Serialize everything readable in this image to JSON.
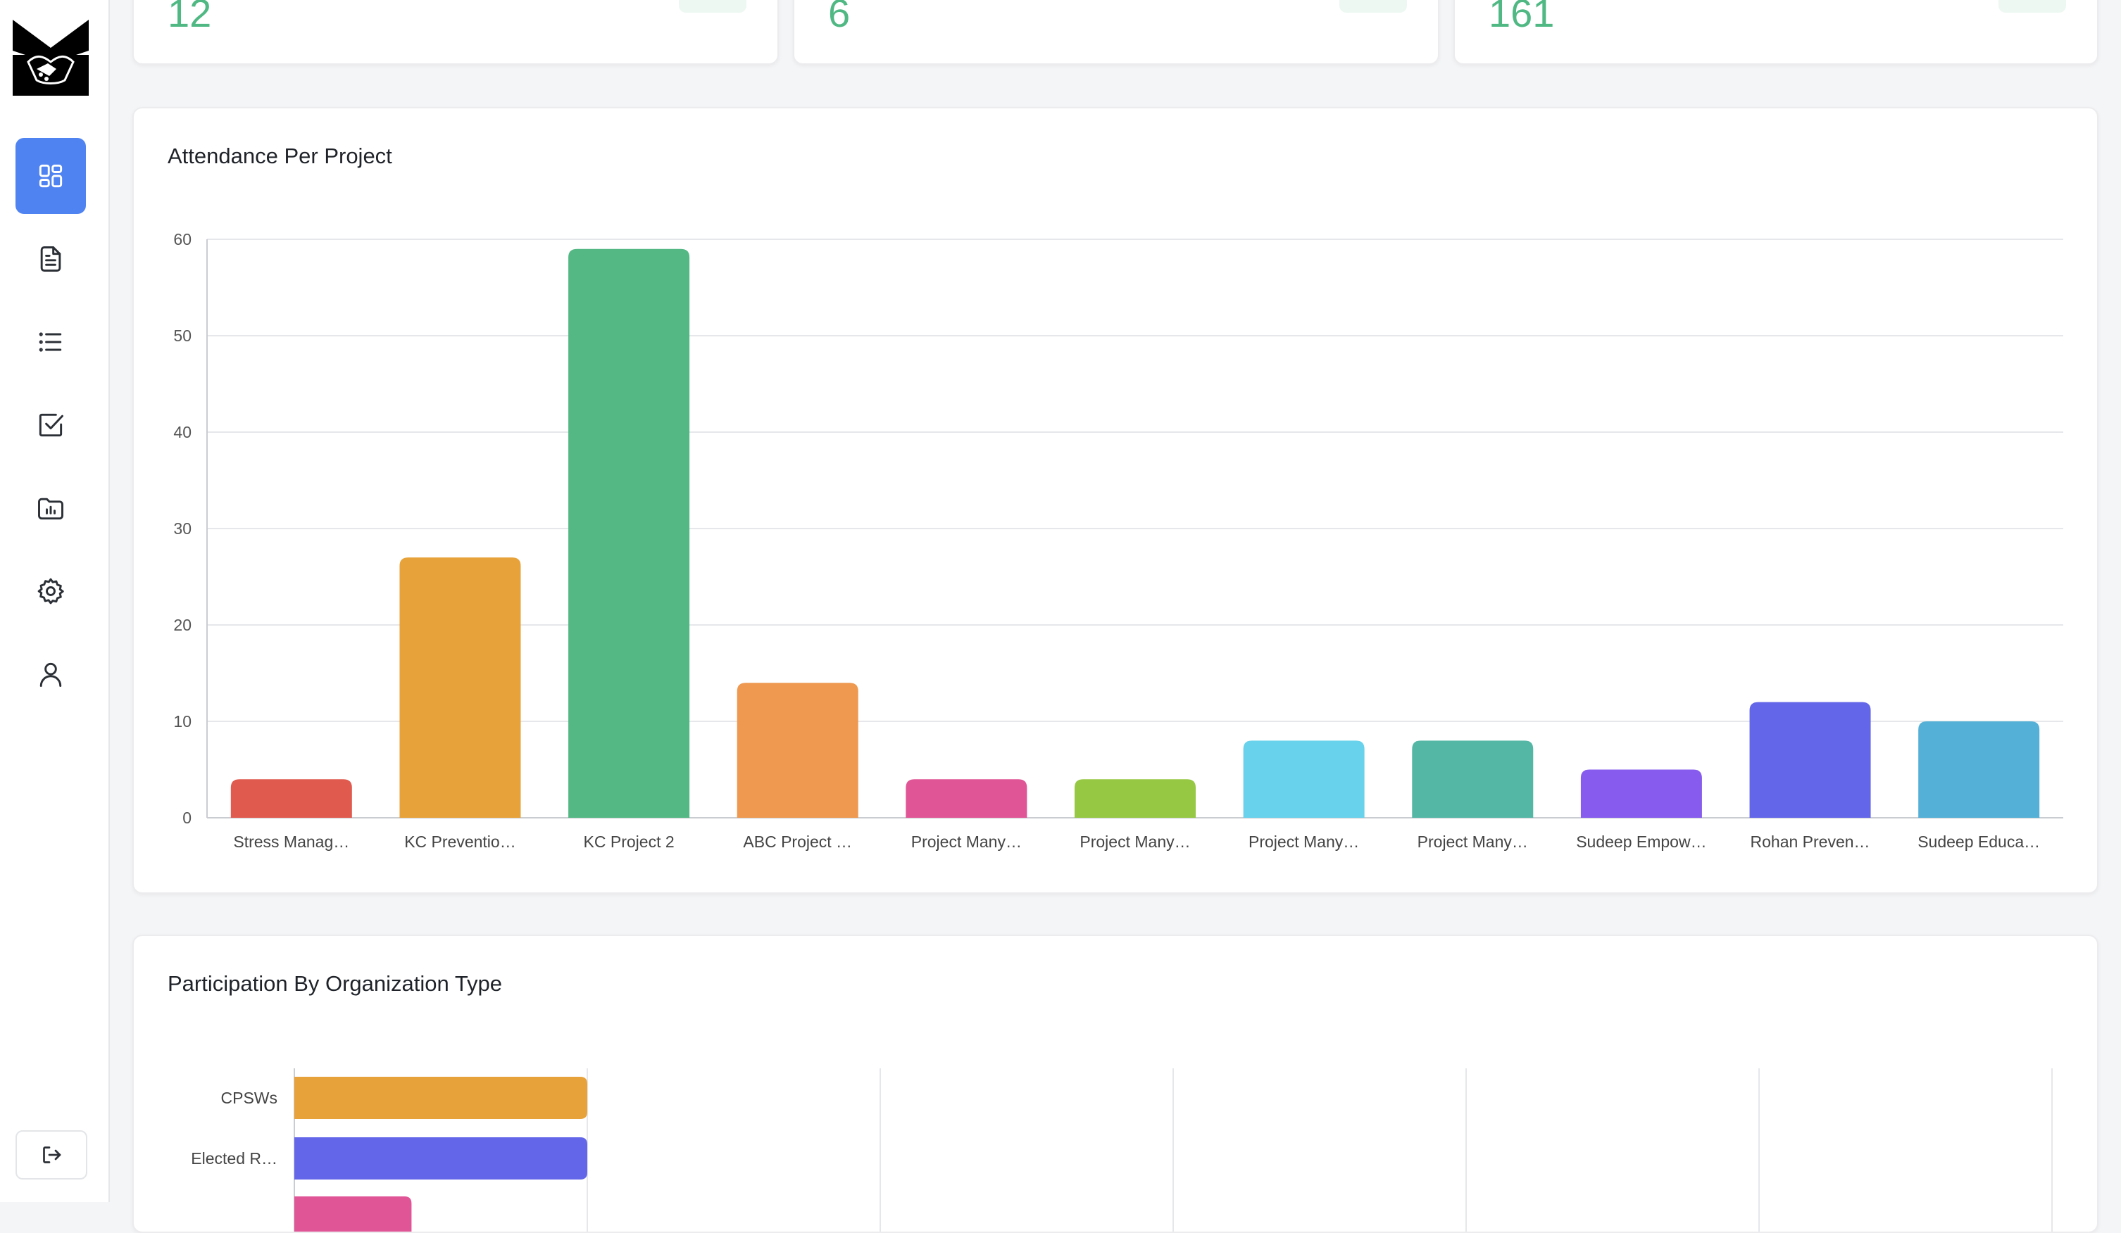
{
  "sidebar": {
    "logo_icon": "handshake-logo-icon",
    "items": [
      {
        "icon": "dashboard-grid-icon",
        "active": true
      },
      {
        "icon": "document-icon",
        "active": false
      },
      {
        "icon": "list-icon",
        "active": false
      },
      {
        "icon": "checkbox-icon",
        "active": false
      },
      {
        "icon": "folder-chart-icon",
        "active": false
      },
      {
        "icon": "gear-icon",
        "active": false
      },
      {
        "icon": "user-icon",
        "active": false
      }
    ],
    "logout_icon": "logout-icon",
    "active_color": "#4f83f1"
  },
  "stats": [
    {
      "value": "12"
    },
    {
      "value": "6"
    },
    {
      "value": "161"
    }
  ],
  "attendance": {
    "title": "Attendance Per Project"
  },
  "participation": {
    "title": "Participation By Organization Type"
  },
  "chart_data": [
    {
      "type": "bar",
      "title": "Attendance Per Project",
      "categories": [
        "Stress Manag…",
        "KC Preventio…",
        "KC Project 2",
        "ABC Project …",
        "Project Many…",
        "Project Many…",
        "Project Many…",
        "Project Many…",
        "Sudeep Empow…",
        "Rohan Preven…",
        "Sudeep Educa…"
      ],
      "values": [
        4,
        27,
        59,
        14,
        4,
        4,
        8,
        8,
        5,
        12,
        10
      ],
      "colors": [
        "#e05a4e",
        "#e8a23a",
        "#54b884",
        "#ee9850",
        "#e05595",
        "#96c844",
        "#68d1eb",
        "#54b7a5",
        "#865bed",
        "#6366e8",
        "#54b0d6"
      ],
      "ylim": [
        0,
        60
      ],
      "yticks": [
        0,
        10,
        20,
        30,
        40,
        50,
        60
      ],
      "grid": true
    },
    {
      "type": "bar",
      "orientation": "horizontal",
      "title": "Participation By Organization Type",
      "categories": [
        "CPSWs",
        "Elected R…"
      ],
      "values": [
        1,
        1
      ],
      "colors": [
        "#e8a23a",
        "#6366e8",
        "#e05595"
      ],
      "grid": true
    }
  ]
}
